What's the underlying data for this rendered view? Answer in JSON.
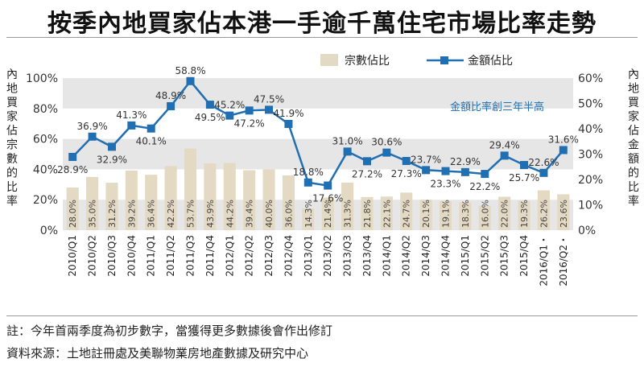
{
  "title": "按季內地買家佔本港一手逾千萬住宅市場比率走勢",
  "note": "註：今年首兩季度為初步數字，當獲得更多數據後會作出修訂",
  "source": "資料來源：土地註冊處及美聯物業房地產數據及研究中心",
  "colors": {
    "bar": "#e4dac4",
    "line": "#1f6fb2",
    "band": "#e6e6e6"
  },
  "chart_data": {
    "type": "bar+line",
    "categories": [
      "2010/Q1",
      "2010/Q2",
      "2010/Q3",
      "2010/Q4",
      "2011/Q1",
      "2011/Q2",
      "2011/Q3",
      "2011/Q4",
      "2012/Q1",
      "2012/Q2",
      "2012/Q3",
      "2012/Q4",
      "2013/Q1",
      "2013/Q2",
      "2013/Q3",
      "2013/Q4",
      "2014/Q1",
      "2014/Q2",
      "2014/Q3",
      "2014/Q4",
      "2015/Q1",
      "2015/Q2",
      "2015/Q3",
      "2015/Q4",
      "2016/Q1・",
      "2016/Q2・"
    ],
    "series": [
      {
        "name": "宗數佔比",
        "kind": "bar",
        "axis": "left",
        "values": [
          28.0,
          35.0,
          31.2,
          39.2,
          36.4,
          42.2,
          53.7,
          43.9,
          44.2,
          39.4,
          40.0,
          36.0,
          14.3,
          21.4,
          31.3,
          21.8,
          22.1,
          24.7,
          20.1,
          19.1,
          18.3,
          16.0,
          22.0,
          19.3,
          26.2,
          23.6
        ],
        "labels": [
          "28.0%",
          "35.0%",
          "31.2%",
          "39.2%",
          "36.4%",
          "42.2%",
          "53.7%",
          "43.9%",
          "44.2%",
          "39.4%",
          "40.0%",
          "36.0%",
          "14.3%",
          "21.4%",
          "31.3%",
          "21.8%",
          "22.1%",
          "24.7%",
          "20.1%",
          "19.1%",
          "18.3%",
          "16.0%",
          "22.0%",
          "19.3%",
          "26.2%",
          "23.6%"
        ]
      },
      {
        "name": "金額佔比",
        "kind": "line",
        "axis": "right",
        "values": [
          28.9,
          36.9,
          32.9,
          41.3,
          40.1,
          48.9,
          58.8,
          49.5,
          45.2,
          47.2,
          47.5,
          41.9,
          18.8,
          17.6,
          31.0,
          27.2,
          30.6,
          27.3,
          23.7,
          23.3,
          22.9,
          22.2,
          29.4,
          25.7,
          22.6,
          31.6
        ],
        "labels": [
          "28.9%",
          "36.9%",
          "32.9%",
          "41.3%",
          "40.1%",
          "48.9%",
          "58.8%",
          "49.5%",
          "45.2%",
          "47.2%",
          "47.5%",
          "41.9%",
          "18.8%",
          "17.6%",
          "31.0%",
          "27.2%",
          "30.6%",
          "27.3%",
          "23.7%",
          "23.3%",
          "22.9%",
          "22.2%",
          "29.4%",
          "25.7%",
          "22.6%",
          "31.6%"
        ]
      }
    ],
    "ylabel_left": "內地買家佔宗數的比率",
    "ylabel_right": "內地買家佔金額的比率",
    "ylim_left": [
      0,
      100
    ],
    "ylim_right": [
      0,
      60
    ],
    "yticks_left": [
      "0%",
      "20%",
      "40%",
      "60%",
      "80%",
      "100%"
    ],
    "yticks_right": [
      "0%",
      "10%",
      "20%",
      "30%",
      "40%",
      "50%",
      "60%"
    ],
    "annotation": "金額比率創三年半高",
    "legend_position": "top-center"
  }
}
